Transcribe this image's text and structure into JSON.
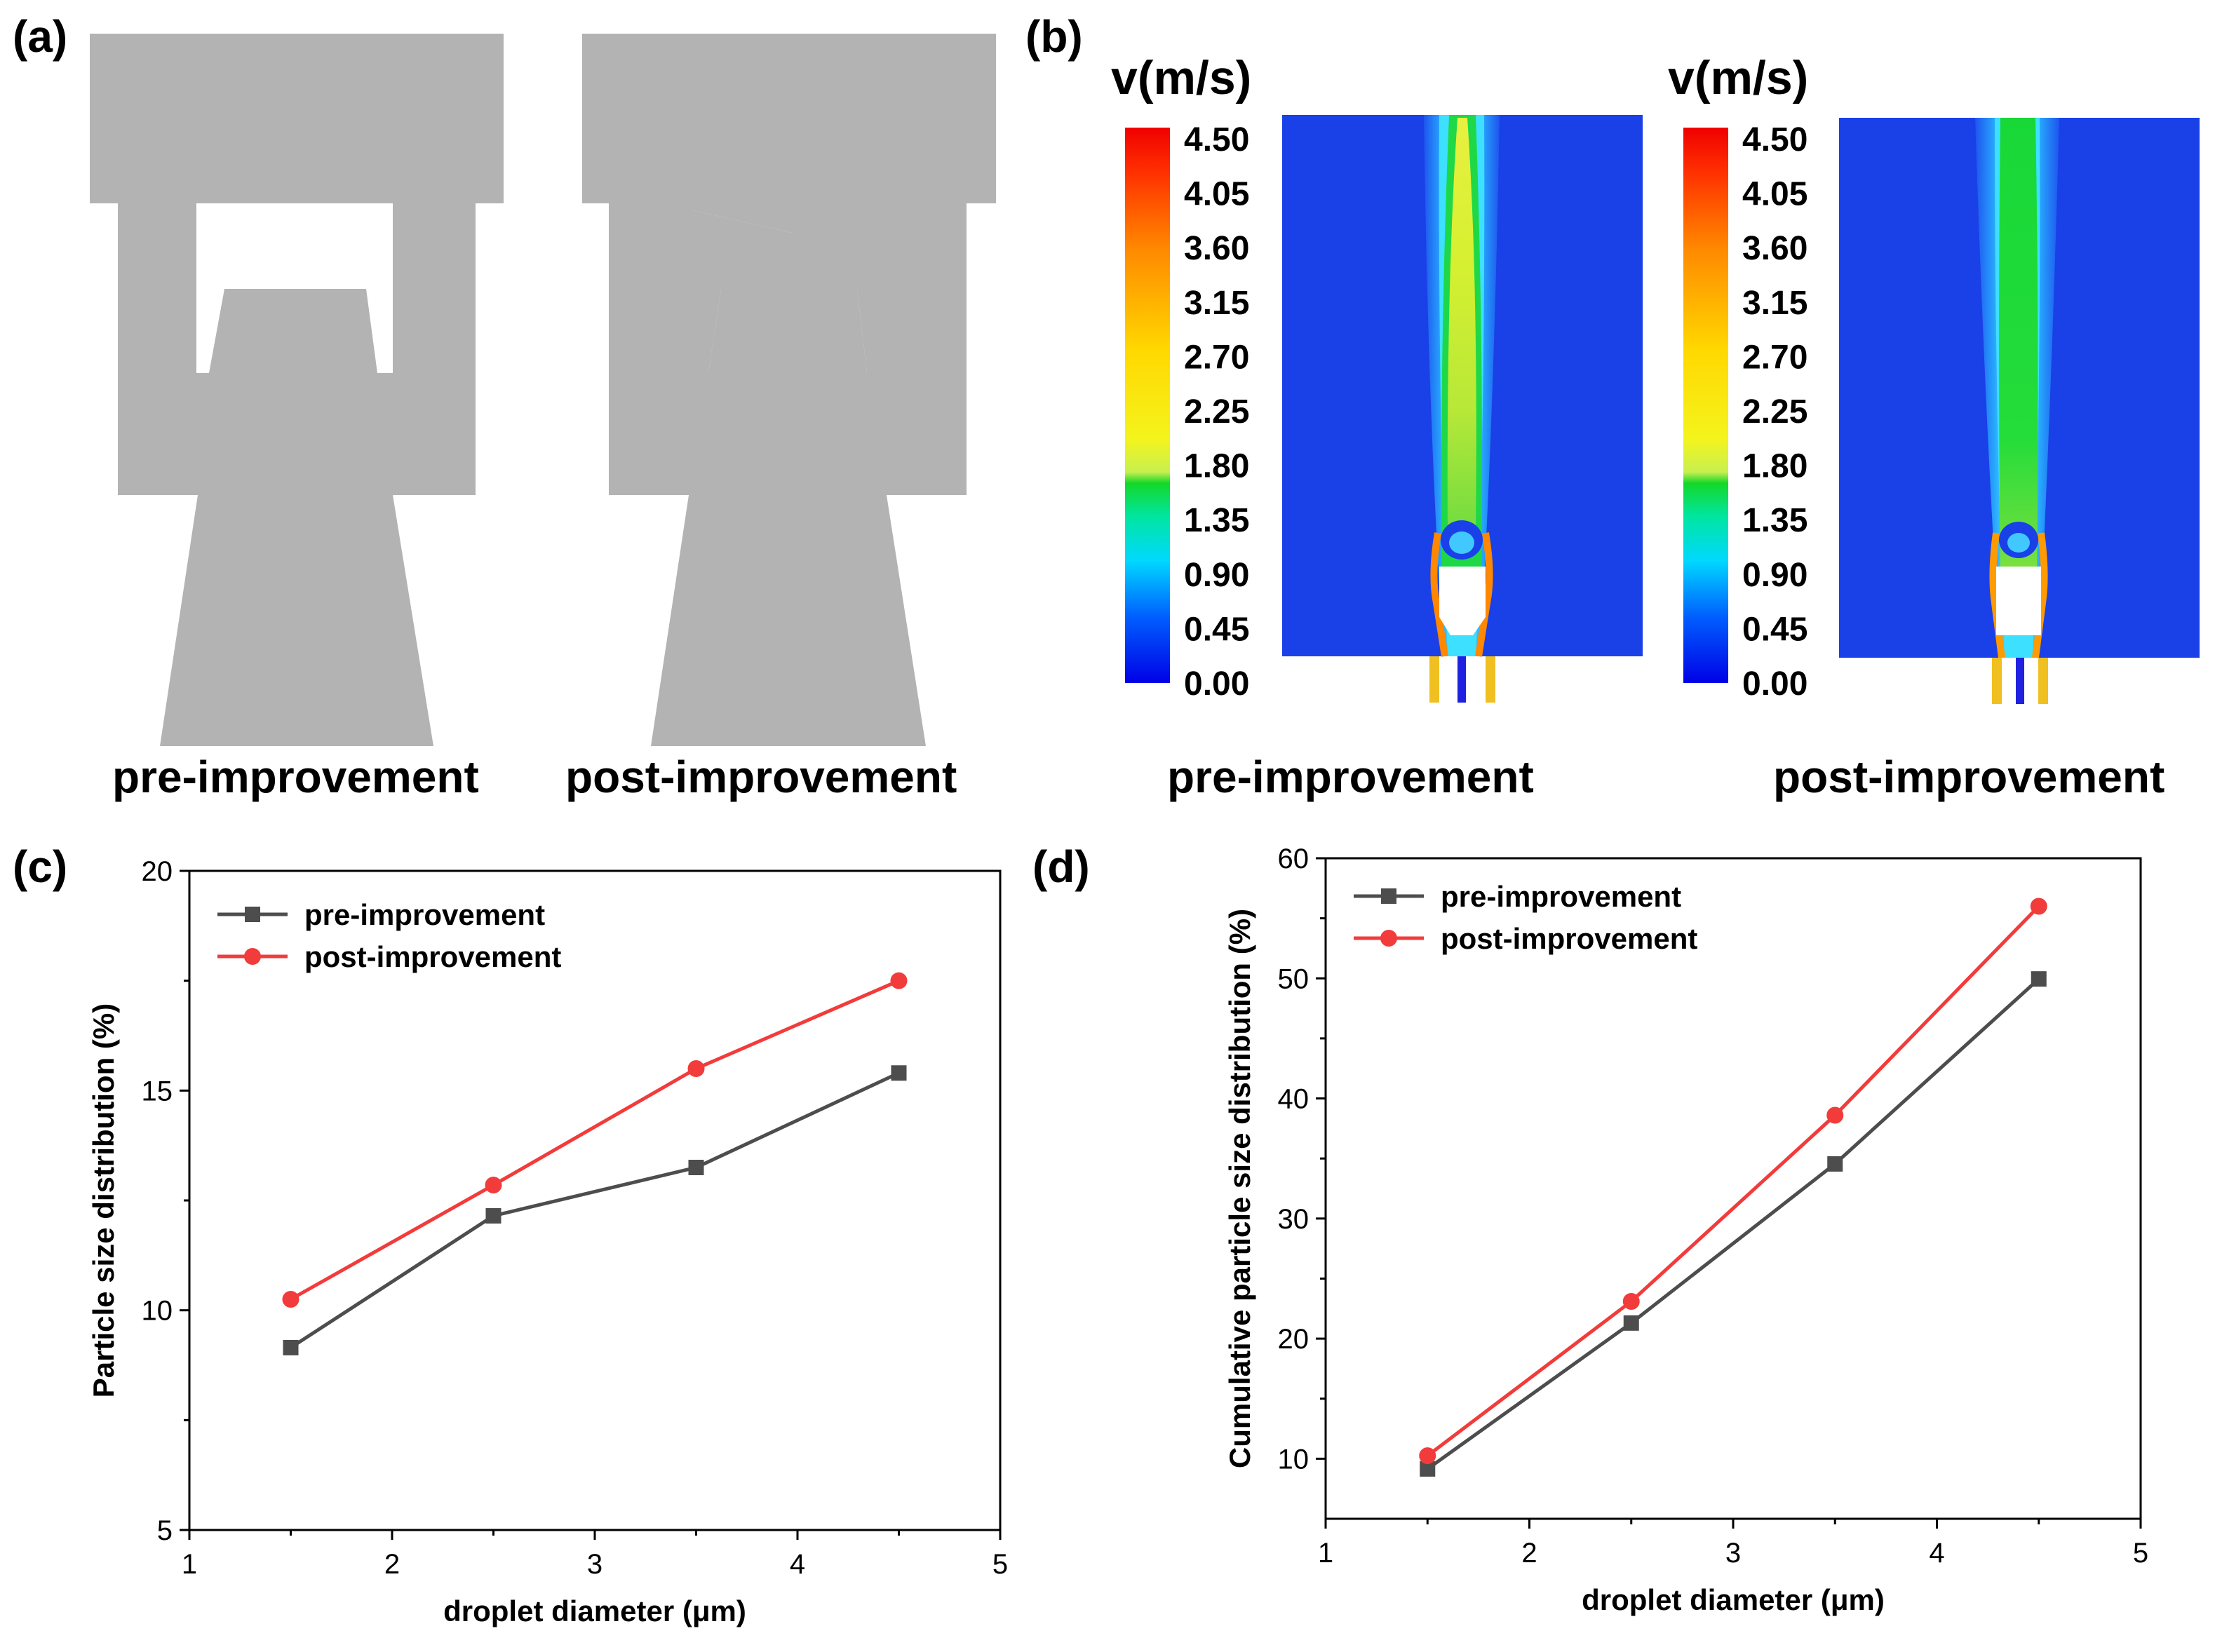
{
  "panels": {
    "a": {
      "label": "(a)",
      "captions": [
        "pre-improvement",
        "post-improvement"
      ]
    },
    "b": {
      "label": "(b)",
      "colorbar_title": "v(m/s)",
      "colorbar_ticks": [
        "4.50",
        "4.05",
        "3.60",
        "3.15",
        "2.70",
        "2.25",
        "1.80",
        "1.35",
        "0.90",
        "0.45",
        "0.00"
      ],
      "captions": [
        "pre-improvement",
        "post-improvement"
      ]
    },
    "c": {
      "label": "(c)"
    },
    "d": {
      "label": "(d)"
    }
  },
  "colors": {
    "geometry_gray": "#b3b3b3",
    "pre_series": "#4d4d4d",
    "post_series": "#f23b3b",
    "field_low": "#1030e8",
    "field_high": "#ff1010"
  },
  "chart_data": [
    {
      "id": "c",
      "type": "line",
      "xlabel": "droplet diameter (μm)",
      "ylabel": "Particle size distribution (%)",
      "xlim": [
        1,
        5
      ],
      "ylim": [
        5,
        20
      ],
      "xticks": [
        1,
        2,
        3,
        4,
        5
      ],
      "yticks": [
        5,
        10,
        15,
        20
      ],
      "legend_position": "top-left",
      "series": [
        {
          "name": "pre-improvement",
          "marker": "square",
          "color": "#4d4d4d",
          "x": [
            1.5,
            2.5,
            3.5,
            4.5
          ],
          "y": [
            9.15,
            12.15,
            13.25,
            15.4
          ]
        },
        {
          "name": "post-improvement",
          "marker": "circle",
          "color": "#f23b3b",
          "x": [
            1.5,
            2.5,
            3.5,
            4.5
          ],
          "y": [
            10.25,
            12.85,
            15.5,
            17.5
          ]
        }
      ]
    },
    {
      "id": "d",
      "type": "line",
      "xlabel": "droplet diameter (μm)",
      "ylabel": "Cumulative particle size distribution (%)",
      "xlim": [
        1,
        5
      ],
      "ylim": [
        5,
        60
      ],
      "xticks": [
        1,
        2,
        3,
        4,
        5
      ],
      "yticks": [
        10,
        20,
        30,
        40,
        50,
        60
      ],
      "legend_position": "top-left",
      "series": [
        {
          "name": "pre-improvement",
          "marker": "square",
          "color": "#4d4d4d",
          "x": [
            1.5,
            2.5,
            3.5,
            4.5
          ],
          "y": [
            9.15,
            21.3,
            34.55,
            49.95
          ]
        },
        {
          "name": "post-improvement",
          "marker": "circle",
          "color": "#f23b3b",
          "x": [
            1.5,
            2.5,
            3.5,
            4.5
          ],
          "y": [
            10.25,
            23.1,
            38.6,
            56.0
          ]
        }
      ]
    }
  ]
}
